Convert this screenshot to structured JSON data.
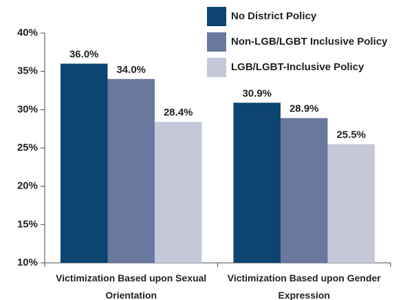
{
  "chart_data": {
    "type": "bar",
    "categories": [
      "Victimization Based upon Sexual Orientation",
      "Victimization Based upon Gender Expression"
    ],
    "series": [
      {
        "name": "No District Policy",
        "color": "#0b4570",
        "values": [
          36.0,
          30.9
        ],
        "value_labels": [
          "36.0%",
          "30.9%"
        ]
      },
      {
        "name": "Non-LGB/LGBT Inclusive Policy",
        "color": "#6a789e",
        "values": [
          34.0,
          28.9
        ],
        "value_labels": [
          "34.0%",
          "28.9%"
        ]
      },
      {
        "name": "LGB/LGBT-Inclusive Policy",
        "color": "#c5c8d9",
        "values": [
          28.4,
          25.5
        ],
        "value_labels": [
          "28.4%",
          "25.5%"
        ]
      }
    ],
    "ylim": [
      10,
      40
    ],
    "yticks": [
      {
        "value": 10,
        "label": "10%"
      },
      {
        "value": 15,
        "label": "15%"
      },
      {
        "value": 20,
        "label": "20%"
      },
      {
        "value": 25,
        "label": "25%"
      },
      {
        "value": 30,
        "label": "30%"
      },
      {
        "value": 35,
        "label": "35%"
      },
      {
        "value": 40,
        "label": "40%"
      }
    ],
    "legend": "top-right",
    "grid": false
  }
}
